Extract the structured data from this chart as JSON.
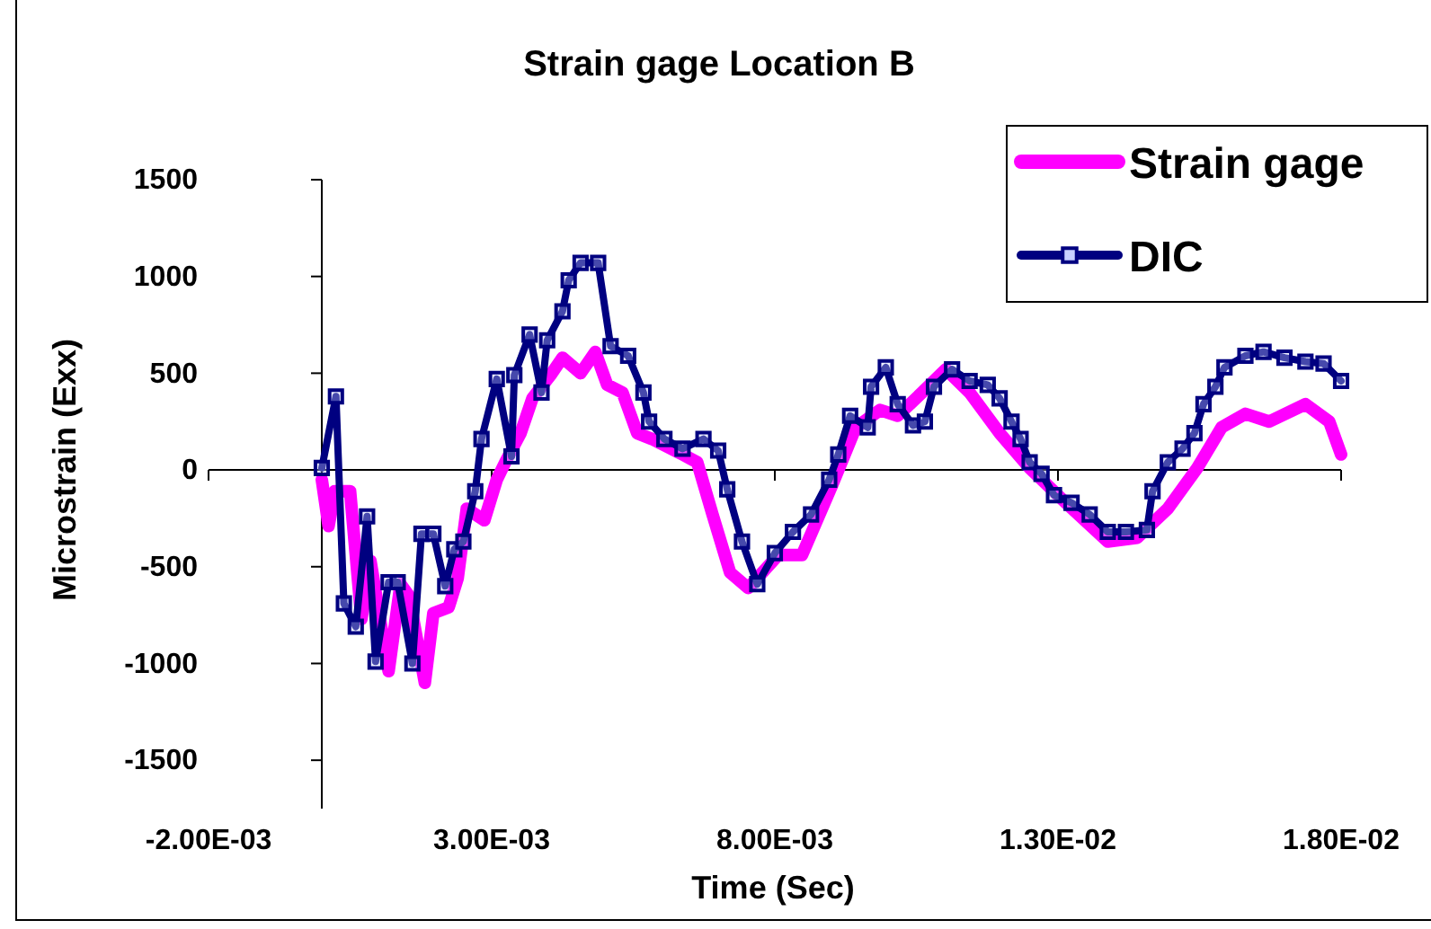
{
  "chart_data": {
    "type": "line",
    "title": "Strain gage Location B",
    "xlabel": "Time (Sec)",
    "ylabel": "Microstrain (Exx)",
    "xlim": [
      -0.002,
      0.018
    ],
    "ylim": [
      -1750,
      1500
    ],
    "xticks": [
      {
        "value": -0.002,
        "label": "-2.00E-03"
      },
      {
        "value": 0.003,
        "label": "3.00E-03"
      },
      {
        "value": 0.008,
        "label": "8.00E-03"
      },
      {
        "value": 0.013,
        "label": "1.30E-02"
      },
      {
        "value": 0.018,
        "label": "1.80E-02"
      }
    ],
    "yticks": [
      -1500,
      -1000,
      -500,
      0,
      500,
      1000,
      1500
    ],
    "legend": "top right",
    "series": [
      {
        "name": "Strain gage",
        "color": "#ff00ff",
        "marker": "none",
        "x": [
          0,
          0.00012,
          0.00023,
          0.0005,
          0.0007,
          0.00086,
          0.00118,
          0.00139,
          0.00154,
          0.00182,
          0.00197,
          0.00224,
          0.0024,
          0.00256,
          0.00287,
          0.00309,
          0.00324,
          0.00351,
          0.00372,
          0.00404,
          0.00425,
          0.00457,
          0.00483,
          0.00504,
          0.00531,
          0.00557,
          0.00583,
          0.00637,
          0.00663,
          0.0069,
          0.00721,
          0.00753,
          0.00806,
          0.00848,
          0.00901,
          0.00943,
          0.00986,
          0.01017,
          0.0106,
          0.01102,
          0.01144,
          0.01197,
          0.0125,
          0.01314,
          0.01388,
          0.0144,
          0.01494,
          0.01546,
          0.01589,
          0.01631,
          0.01673,
          0.01737,
          0.01779,
          0.018
        ],
        "values": [
          -50,
          -290,
          -110,
          -110,
          -770,
          -470,
          -1040,
          -590,
          -650,
          -1100,
          -740,
          -710,
          -560,
          -200,
          -260,
          -50,
          40,
          190,
          370,
          490,
          580,
          500,
          610,
          440,
          400,
          190,
          160,
          80,
          40,
          -230,
          -530,
          -610,
          -440,
          -440,
          -80,
          220,
          310,
          280,
          400,
          520,
          400,
          190,
          10,
          -170,
          -370,
          -350,
          -200,
          10,
          220,
          290,
          250,
          340,
          250,
          80
        ]
      },
      {
        "name": "DIC",
        "color": "#000080",
        "marker": "square",
        "x": [
          0,
          0.00025,
          0.00039,
          0.0006,
          0.0008,
          0.00095,
          0.00118,
          0.00134,
          0.0016,
          0.00176,
          0.00197,
          0.00218,
          0.00234,
          0.0025,
          0.00271,
          0.00282,
          0.00309,
          0.00335,
          0.0034,
          0.00367,
          0.00388,
          0.00398,
          0.00425,
          0.00436,
          0.00457,
          0.00488,
          0.0051,
          0.00541,
          0.00568,
          0.00578,
          0.00605,
          0.00637,
          0.00674,
          0.007,
          0.00716,
          0.00742,
          0.00769,
          0.008,
          0.00832,
          0.00864,
          0.00896,
          0.00912,
          0.00933,
          0.00964,
          0.0097,
          0.00996,
          0.01017,
          0.01044,
          0.01065,
          0.01081,
          0.01113,
          0.01144,
          0.01176,
          0.01197,
          0.01218,
          0.01234,
          0.0125,
          0.01271,
          0.01293,
          0.01324,
          0.01356,
          0.01388,
          0.0142,
          0.01457,
          0.01467,
          0.01494,
          0.0152,
          0.01541,
          0.01557,
          0.01578,
          0.01594,
          0.01631,
          0.01663,
          0.017,
          0.01737,
          0.01769,
          0.018
        ],
        "values": [
          10,
          380,
          -690,
          -810,
          -240,
          -990,
          -580,
          -580,
          -1000,
          -330,
          -330,
          -600,
          -410,
          -370,
          -110,
          160,
          470,
          70,
          490,
          700,
          400,
          670,
          820,
          980,
          1070,
          1070,
          640,
          590,
          400,
          250,
          160,
          110,
          160,
          100,
          -100,
          -370,
          -590,
          -430,
          -320,
          -230,
          -50,
          80,
          280,
          220,
          430,
          530,
          340,
          230,
          250,
          430,
          520,
          460,
          440,
          370,
          250,
          160,
          40,
          -20,
          -130,
          -170,
          -230,
          -320,
          -320,
          -310,
          -110,
          40,
          110,
          190,
          340,
          430,
          530,
          590,
          610,
          580,
          560,
          550,
          460
        ]
      }
    ]
  }
}
